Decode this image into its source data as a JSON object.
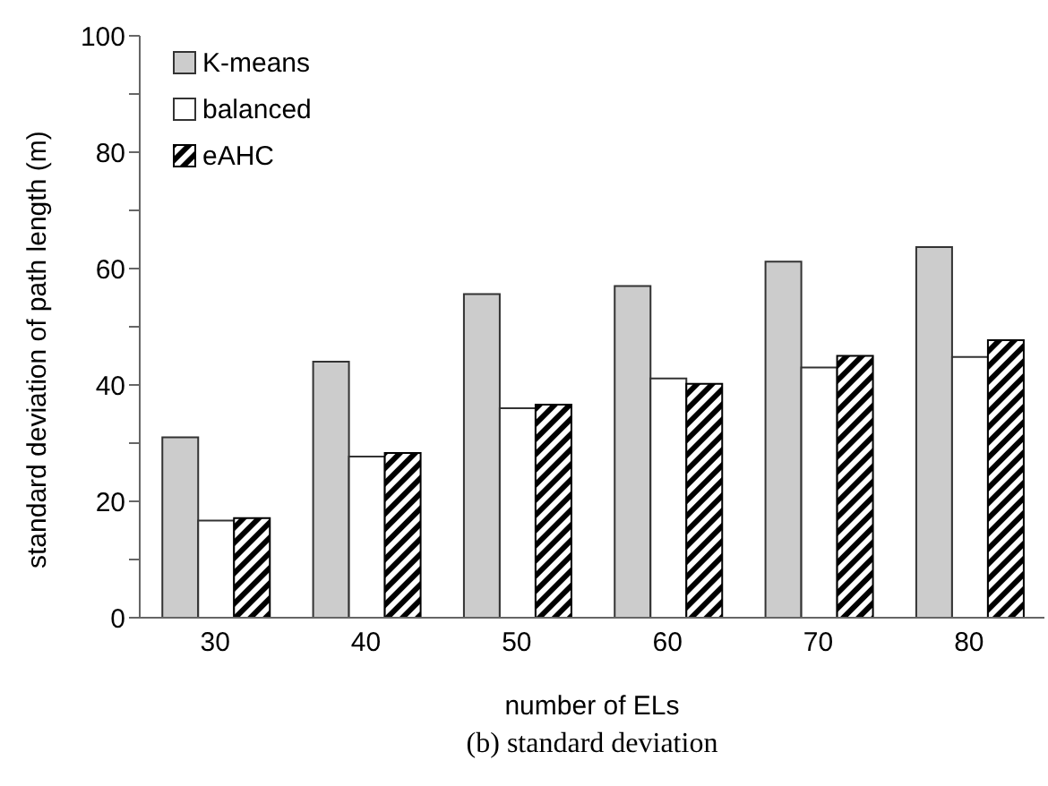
{
  "chart_data": {
    "type": "bar",
    "xlabel": "number of ELs",
    "ylabel": "standard deviation of path length (m)",
    "categories": [
      "30",
      "40",
      "50",
      "60",
      "70",
      "80"
    ],
    "series": [
      {
        "name": "K-means",
        "color": "#cccccc",
        "values": [
          31,
          44,
          55.6,
          57,
          61.2,
          63.7
        ]
      },
      {
        "name": "balanced",
        "color": "#ffffff",
        "values": [
          16.7,
          27.7,
          36,
          41.1,
          43,
          44.8
        ]
      },
      {
        "name": "eAHC",
        "color": "#000000",
        "values": [
          17.1,
          28.3,
          36.6,
          40.2,
          45,
          47.7
        ]
      }
    ],
    "ylim": [
      0,
      100
    ],
    "yticks": [
      0,
      {
        "value": 10,
        "label": null
      },
      20,
      {
        "value": 30,
        "label": null
      },
      40,
      {
        "value": 50,
        "label": null
      },
      60,
      {
        "value": 70,
        "label": null
      },
      80,
      {
        "value": 90,
        "label": null
      },
      100
    ],
    "legend": "top left",
    "grid": false,
    "annotations": [
      "(b) standard deviation"
    ]
  }
}
